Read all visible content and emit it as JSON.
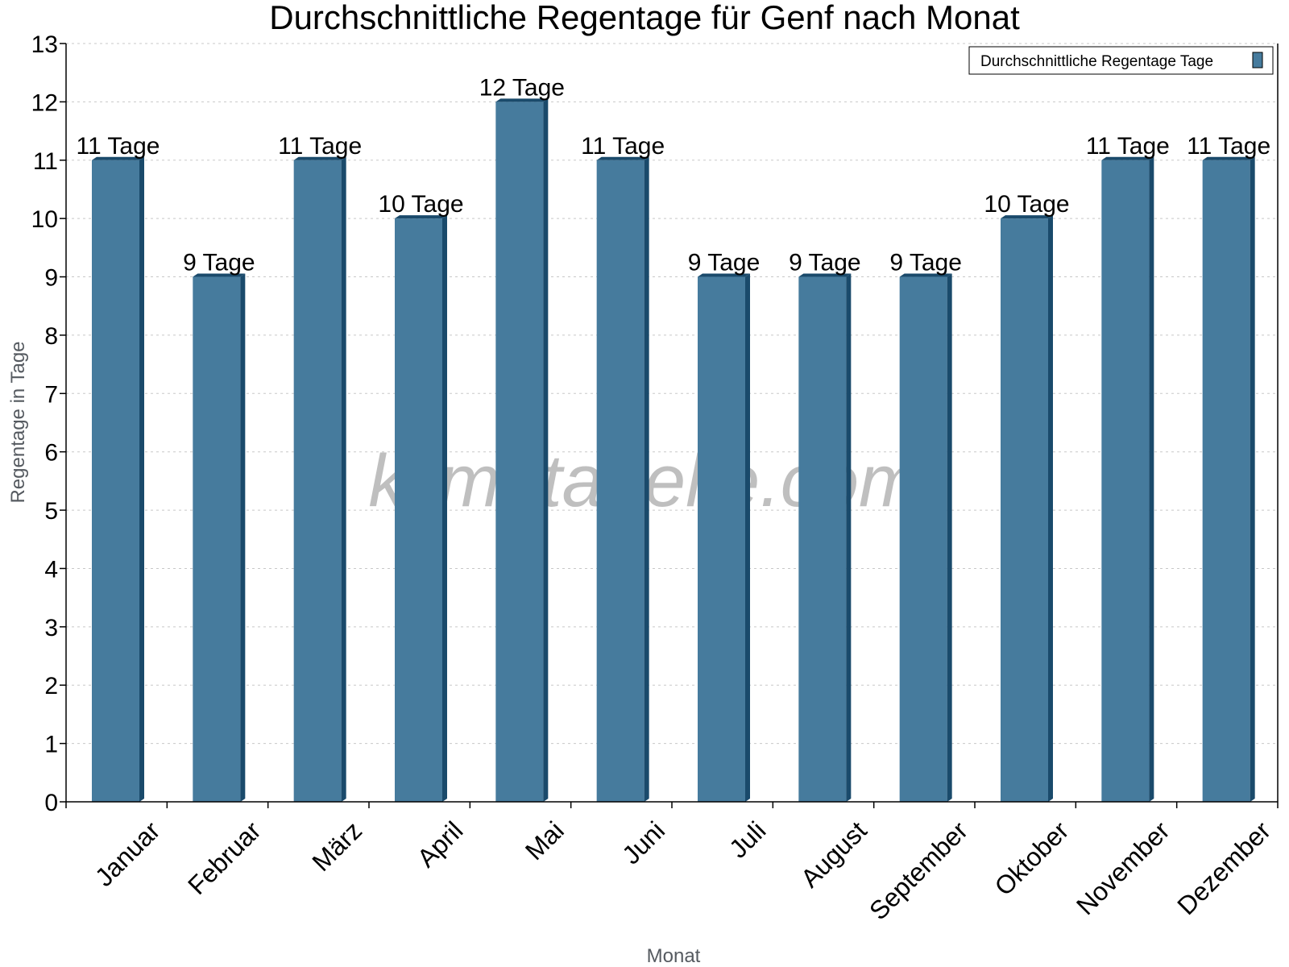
{
  "chart_data": {
    "type": "bar",
    "title": "Durchschnittliche Regentage für Genf nach Monat",
    "xlabel": "Monat",
    "ylabel": "Regentage in Tage",
    "categories": [
      "Januar",
      "Februar",
      "März",
      "April",
      "Mai",
      "Juni",
      "Juli",
      "August",
      "September",
      "Oktober",
      "November",
      "Dezember"
    ],
    "series": [
      {
        "name": "Durchschnittliche Regentage Tage",
        "values": [
          11,
          9,
          11,
          10,
          12,
          11,
          9,
          9,
          9,
          10,
          11,
          11
        ],
        "color": "#467b9d",
        "side_color": "#1a4a6b"
      }
    ],
    "data_label_suffix": " Tage",
    "ylim": [
      0,
      13
    ],
    "yticks": [
      0,
      1,
      2,
      3,
      4,
      5,
      6,
      7,
      8,
      9,
      10,
      11,
      12,
      13
    ],
    "grid": true,
    "legend_position": "top-right",
    "watermark": "klimatabelle.com"
  }
}
